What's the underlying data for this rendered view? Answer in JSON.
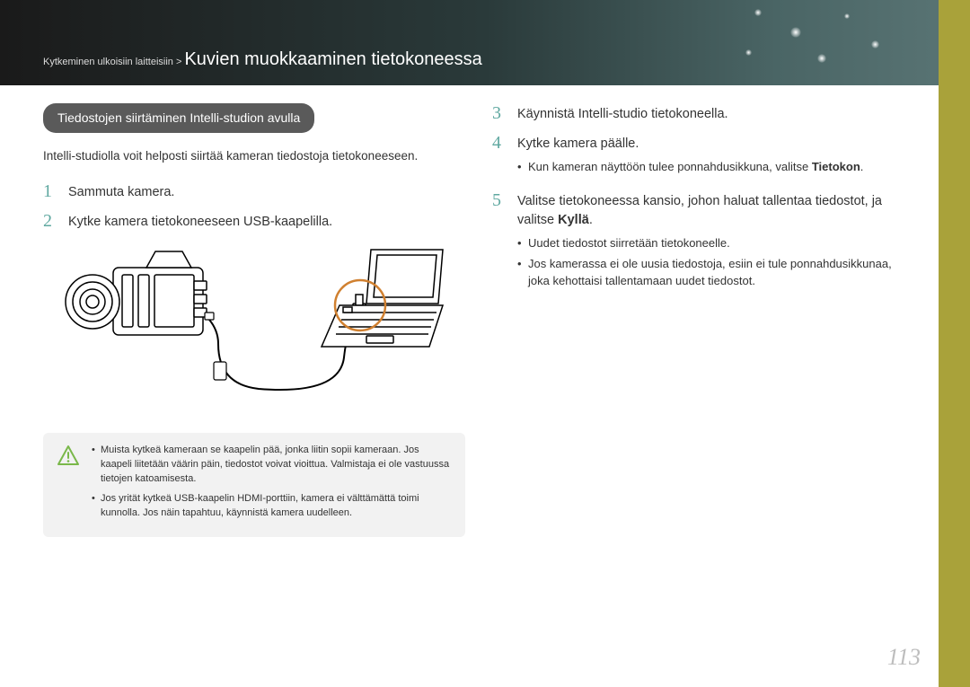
{
  "header": {
    "breadcrumb": "Kytkeminen ulkoisiin laitteisiin > ",
    "title": "Kuvien muokkaaminen tietokoneessa"
  },
  "section_pill": "Tiedostojen siirtäminen Intelli-studion avulla",
  "intro": "Intelli-studiolla voit helposti siirtää kameran tiedostoja tietokoneeseen.",
  "left_steps": [
    {
      "n": "1",
      "text": "Sammuta kamera."
    },
    {
      "n": "2",
      "text": "Kytke kamera tietokoneeseen USB-kaapelilla."
    }
  ],
  "note": {
    "bullets": [
      "Muista kytkeä kameraan se kaapelin pää, jonka liitin sopii kameraan. Jos kaapeli liitetään väärin päin, tiedostot voivat vioittua. Valmistaja ei ole vastuussa tietojen katoamisesta.",
      "Jos yrität kytkeä USB-kaapelin HDMI-porttiin, kamera ei välttämättä toimi kunnolla. Jos näin tapahtuu, käynnistä kamera uudelleen."
    ]
  },
  "right_steps": [
    {
      "n": "3",
      "text": "Käynnistä Intelli-studio tietokoneella."
    },
    {
      "n": "4",
      "text": "Kytke kamera päälle.",
      "bullets": [
        "Kun kameran näyttöön tulee ponnahdusikkuna, valitse <b>Tietokon</b>."
      ]
    },
    {
      "n": "5",
      "text": "Valitse tietokoneessa kansio, johon haluat tallentaa tiedostot, ja valitse <b>Kyllä</b>.",
      "bullets": [
        "Uudet tiedostot siirretään tietokoneelle.",
        "Jos kamerassa ei ole uusia tiedostoja, esiin ei tule ponnahdusikkunaa, joka kehottaisi tallentamaan uudet tiedostot."
      ]
    }
  ],
  "page_number": "113",
  "colors": {
    "accent_bar": "#a9a23a",
    "step_number": "#5fa8a0",
    "pill_bg": "#5a5a5a",
    "note_bg": "#f2f2f2",
    "note_icon_stroke": "#7ab84a",
    "page_num_color": "#bdbdbd"
  }
}
